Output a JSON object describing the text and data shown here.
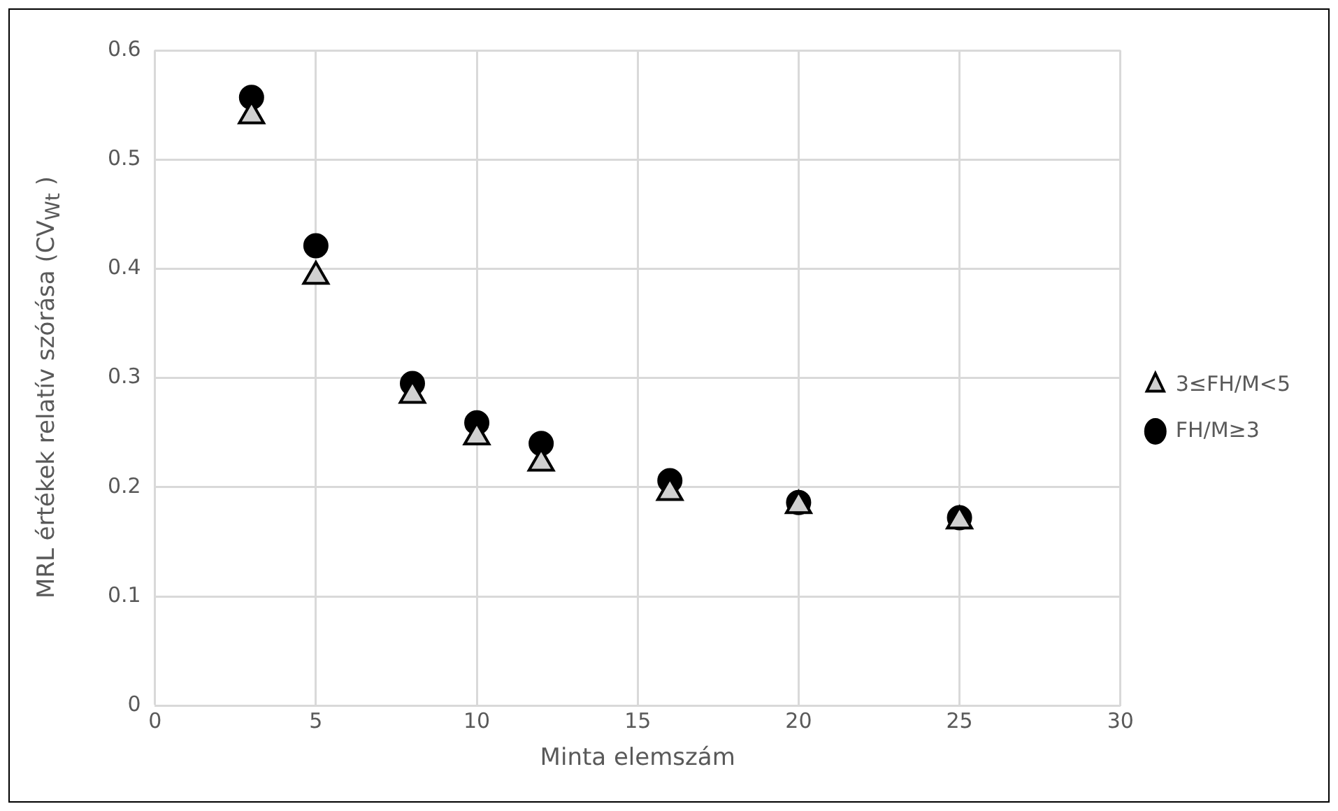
{
  "chart_data": {
    "type": "scatter",
    "xlabel": "Minta elemszám",
    "ylabel": "MRL értékek relatív szórása (CV$_{Wt}$ )",
    "xlim": [
      0,
      30
    ],
    "xticks": [
      0,
      5,
      10,
      15,
      20,
      25,
      30
    ],
    "ylim": [
      0,
      0.6
    ],
    "yticks": [
      0,
      0.1,
      0.2,
      0.3,
      0.4,
      0.5,
      0.6
    ],
    "grid": true,
    "legend": "right",
    "series": [
      {
        "name": "FH/M≥3",
        "color": "#000000",
        "marker": "circle",
        "x": [
          3,
          5,
          8,
          10,
          12,
          16,
          20,
          25
        ],
        "values": [
          0.557,
          0.421,
          0.295,
          0.259,
          0.24,
          0.206,
          0.186,
          0.172
        ]
      },
      {
        "name": "3≤FH/M<5",
        "color": "#d0d0d0",
        "marker": "triangle",
        "x": [
          3,
          5,
          8,
          10,
          12,
          16,
          20,
          25
        ],
        "values": [
          0.54,
          0.393,
          0.284,
          0.246,
          0.222,
          0.195,
          0.183,
          0.169
        ]
      }
    ]
  }
}
